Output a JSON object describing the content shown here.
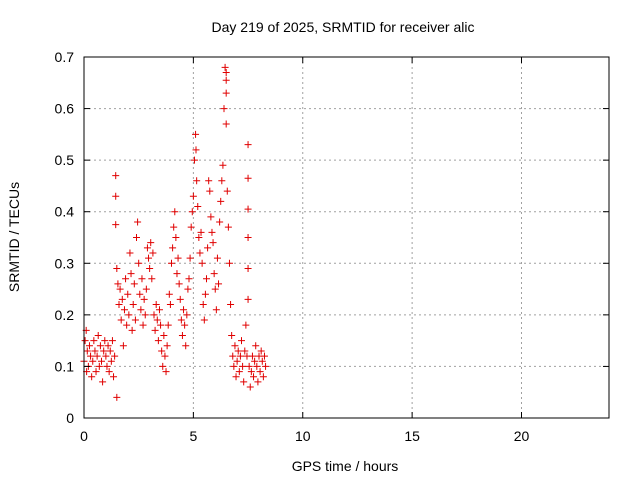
{
  "chart_data": {
    "type": "scatter",
    "title": "Day 219 of 2025, SRMTID for receiver alic",
    "xlabel": "GPS time / hours",
    "ylabel": "SRMTID / TECUs",
    "xlim": [
      0,
      24
    ],
    "ylim": [
      0,
      0.7
    ],
    "xticks": [
      0,
      5,
      10,
      15,
      20
    ],
    "xtick_labels": [
      "0",
      "5",
      "10",
      "15",
      "20"
    ],
    "yticks": [
      0,
      0.1,
      0.2,
      0.3,
      0.4,
      0.5,
      0.6,
      0.7
    ],
    "ytick_labels": [
      "0",
      "0.1",
      "0.2",
      "0.3",
      "0.4",
      "0.5",
      "0.6",
      "0.7"
    ],
    "grid": true,
    "marker": "+",
    "marker_color": "#e00000",
    "series": [
      {
        "name": "SRMTID",
        "points": [
          [
            0.0,
            0.11
          ],
          [
            0.05,
            0.15
          ],
          [
            0.1,
            0.17
          ],
          [
            0.12,
            0.09
          ],
          [
            0.15,
            0.13
          ],
          [
            0.2,
            0.1
          ],
          [
            0.25,
            0.14
          ],
          [
            0.3,
            0.12
          ],
          [
            0.35,
            0.08
          ],
          [
            0.4,
            0.11
          ],
          [
            0.45,
            0.15
          ],
          [
            0.5,
            0.13
          ],
          [
            0.55,
            0.09
          ],
          [
            0.6,
            0.12
          ],
          [
            0.65,
            0.16
          ],
          [
            0.7,
            0.1
          ],
          [
            0.75,
            0.14
          ],
          [
            0.8,
            0.11
          ],
          [
            0.85,
            0.07
          ],
          [
            0.9,
            0.13
          ],
          [
            0.95,
            0.15
          ],
          [
            1.0,
            0.12
          ],
          [
            1.05,
            0.1
          ],
          [
            1.1,
            0.14
          ],
          [
            1.15,
            0.09
          ],
          [
            1.2,
            0.13
          ],
          [
            1.25,
            0.11
          ],
          [
            1.3,
            0.15
          ],
          [
            1.35,
            0.08
          ],
          [
            1.4,
            0.12
          ],
          [
            1.45,
            0.47
          ],
          [
            1.45,
            0.43
          ],
          [
            1.45,
            0.375
          ],
          [
            1.5,
            0.04
          ],
          [
            1.5,
            0.29
          ],
          [
            1.55,
            0.26
          ],
          [
            1.6,
            0.22
          ],
          [
            1.65,
            0.25
          ],
          [
            1.7,
            0.19
          ],
          [
            1.75,
            0.23
          ],
          [
            1.8,
            0.14
          ],
          [
            1.85,
            0.21
          ],
          [
            1.9,
            0.27
          ],
          [
            1.95,
            0.18
          ],
          [
            2.0,
            0.24
          ],
          [
            2.05,
            0.2
          ],
          [
            2.1,
            0.32
          ],
          [
            2.15,
            0.28
          ],
          [
            2.2,
            0.17
          ],
          [
            2.25,
            0.22
          ],
          [
            2.3,
            0.26
          ],
          [
            2.35,
            0.19
          ],
          [
            2.4,
            0.35
          ],
          [
            2.45,
            0.38
          ],
          [
            2.5,
            0.3
          ],
          [
            2.55,
            0.24
          ],
          [
            2.6,
            0.21
          ],
          [
            2.65,
            0.27
          ],
          [
            2.7,
            0.18
          ],
          [
            2.75,
            0.23
          ],
          [
            2.8,
            0.2
          ],
          [
            2.85,
            0.25
          ],
          [
            2.9,
            0.33
          ],
          [
            2.95,
            0.31
          ],
          [
            3.0,
            0.29
          ],
          [
            3.05,
            0.34
          ],
          [
            3.1,
            0.27
          ],
          [
            3.15,
            0.32
          ],
          [
            3.2,
            0.2
          ],
          [
            3.25,
            0.17
          ],
          [
            3.3,
            0.22
          ],
          [
            3.35,
            0.19
          ],
          [
            3.4,
            0.15
          ],
          [
            3.45,
            0.21
          ],
          [
            3.5,
            0.18
          ],
          [
            3.55,
            0.13
          ],
          [
            3.6,
            0.1
          ],
          [
            3.65,
            0.16
          ],
          [
            3.7,
            0.12
          ],
          [
            3.75,
            0.09
          ],
          [
            3.8,
            0.14
          ],
          [
            3.85,
            0.18
          ],
          [
            3.9,
            0.24
          ],
          [
            3.95,
            0.22
          ],
          [
            4.0,
            0.3
          ],
          [
            4.05,
            0.33
          ],
          [
            4.1,
            0.37
          ],
          [
            4.15,
            0.4
          ],
          [
            4.2,
            0.35
          ],
          [
            4.25,
            0.28
          ],
          [
            4.3,
            0.31
          ],
          [
            4.35,
            0.26
          ],
          [
            4.4,
            0.23
          ],
          [
            4.45,
            0.19
          ],
          [
            4.5,
            0.16
          ],
          [
            4.55,
            0.21
          ],
          [
            4.6,
            0.18
          ],
          [
            4.65,
            0.14
          ],
          [
            4.7,
            0.2
          ],
          [
            4.75,
            0.25
          ],
          [
            4.8,
            0.27
          ],
          [
            4.85,
            0.31
          ],
          [
            4.9,
            0.37
          ],
          [
            4.95,
            0.4
          ],
          [
            5.0,
            0.43
          ],
          [
            5.05,
            0.5
          ],
          [
            5.1,
            0.55
          ],
          [
            5.12,
            0.52
          ],
          [
            5.15,
            0.46
          ],
          [
            5.2,
            0.41
          ],
          [
            5.25,
            0.35
          ],
          [
            5.3,
            0.32
          ],
          [
            5.35,
            0.36
          ],
          [
            5.4,
            0.3
          ],
          [
            5.45,
            0.22
          ],
          [
            5.5,
            0.19
          ],
          [
            5.55,
            0.24
          ],
          [
            5.6,
            0.27
          ],
          [
            5.65,
            0.33
          ],
          [
            5.7,
            0.46
          ],
          [
            5.75,
            0.44
          ],
          [
            5.8,
            0.39
          ],
          [
            5.85,
            0.36
          ],
          [
            5.9,
            0.34
          ],
          [
            5.95,
            0.28
          ],
          [
            6.0,
            0.25
          ],
          [
            6.05,
            0.21
          ],
          [
            6.1,
            0.31
          ],
          [
            6.15,
            0.26
          ],
          [
            6.2,
            0.38
          ],
          [
            6.25,
            0.42
          ],
          [
            6.3,
            0.46
          ],
          [
            6.35,
            0.49
          ],
          [
            6.4,
            0.6
          ],
          [
            6.45,
            0.68
          ],
          [
            6.5,
            0.67
          ],
          [
            6.5,
            0.655
          ],
          [
            6.5,
            0.63
          ],
          [
            6.5,
            0.57
          ],
          [
            6.55,
            0.44
          ],
          [
            6.6,
            0.37
          ],
          [
            6.65,
            0.3
          ],
          [
            6.7,
            0.22
          ],
          [
            6.75,
            0.16
          ],
          [
            6.8,
            0.12
          ],
          [
            6.85,
            0.1
          ],
          [
            6.9,
            0.14
          ],
          [
            6.95,
            0.08
          ],
          [
            7.0,
            0.11
          ],
          [
            7.05,
            0.13
          ],
          [
            7.1,
            0.09
          ],
          [
            7.15,
            0.12
          ],
          [
            7.2,
            0.15
          ],
          [
            7.25,
            0.1
          ],
          [
            7.3,
            0.07
          ],
          [
            7.35,
            0.13
          ],
          [
            7.4,
            0.18
          ],
          [
            7.45,
            0.12
          ],
          [
            7.5,
            0.53
          ],
          [
            7.5,
            0.465
          ],
          [
            7.5,
            0.405
          ],
          [
            7.5,
            0.35
          ],
          [
            7.5,
            0.29
          ],
          [
            7.5,
            0.23
          ],
          [
            7.55,
            0.1
          ],
          [
            7.6,
            0.06
          ],
          [
            7.65,
            0.09
          ],
          [
            7.7,
            0.12
          ],
          [
            7.75,
            0.08
          ],
          [
            7.8,
            0.11
          ],
          [
            7.85,
            0.14
          ],
          [
            7.9,
            0.1
          ],
          [
            7.95,
            0.07
          ],
          [
            8.0,
            0.12
          ],
          [
            8.05,
            0.09
          ],
          [
            8.1,
            0.13
          ],
          [
            8.15,
            0.11
          ],
          [
            8.2,
            0.08
          ],
          [
            8.25,
            0.12
          ],
          [
            8.3,
            0.1
          ]
        ]
      }
    ]
  }
}
